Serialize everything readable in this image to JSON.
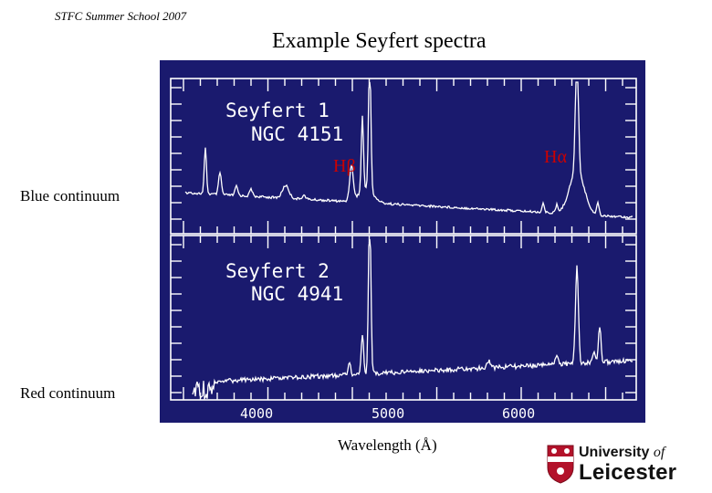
{
  "header_note": "STFC  Summer  School  2007",
  "title": "Example Seyfert spectra",
  "side_labels": {
    "blue": "Blue continuum",
    "red": "Red continuum"
  },
  "xlabel": "Wavelength (Å)",
  "spectra_panel": {
    "background": "#1a1a6e",
    "line_color": "#ffffff",
    "annotation_color": "#cc0000",
    "panels": [
      {
        "name_line1": "Seyfert 1",
        "name_line2": "NGC 4151"
      },
      {
        "name_line1": "Seyfert 2",
        "name_line2": "NGC 4941"
      }
    ],
    "annotations": {
      "hbeta": "Hβ",
      "halpha": "Hα"
    },
    "x_ticks": [
      "4000",
      "5000",
      "6000"
    ]
  },
  "logo": {
    "line1_a": "University",
    "line1_b": "of",
    "line2": "Leicester"
  }
}
